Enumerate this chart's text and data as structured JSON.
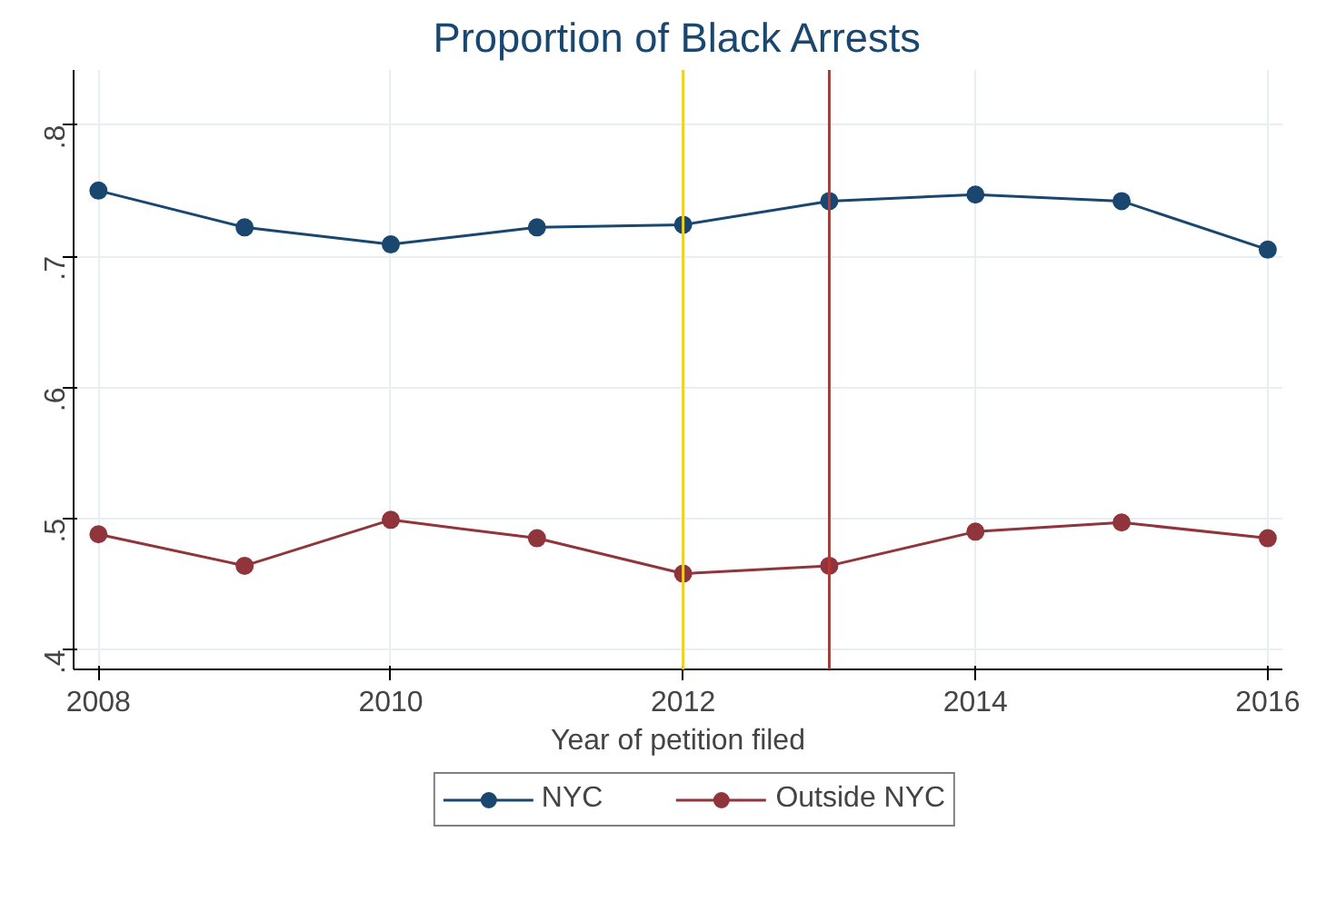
{
  "chart_data": {
    "type": "line",
    "title": "Proportion of Black Arrests",
    "xlabel": "Year of petition filed",
    "x": [
      2008,
      2009,
      2010,
      2011,
      2012,
      2013,
      2014,
      2015,
      2016
    ],
    "series": [
      {
        "name": "NYC",
        "color": "#1a476f",
        "values": [
          0.75,
          0.722,
          0.709,
          0.722,
          0.724,
          0.742,
          0.747,
          0.742,
          0.705
        ]
      },
      {
        "name": "Outside NYC",
        "color": "#90353b",
        "values": [
          0.488,
          0.464,
          0.499,
          0.485,
          0.458,
          0.464,
          0.49,
          0.497,
          0.485
        ]
      }
    ],
    "xlim": [
      2007.83,
      2016.1
    ],
    "ylim": [
      0.385,
      0.842
    ],
    "xticks": [
      2008,
      2010,
      2012,
      2014,
      2016
    ],
    "yticks": [
      {
        "value": 0.4,
        "label": ".4"
      },
      {
        "value": 0.5,
        "label": ".5"
      },
      {
        "value": 0.6,
        "label": ".6"
      },
      {
        "value": 0.7,
        "label": ".7"
      },
      {
        "value": 0.8,
        "label": ".8"
      }
    ],
    "ref_lines": [
      {
        "axis": "x",
        "value": 2012,
        "color": "#f0d020"
      },
      {
        "axis": "x",
        "value": 2013,
        "color": "#c8302a"
      }
    ],
    "grid": true,
    "legend": "bottom",
    "marker": "circle",
    "line_style": "solid"
  }
}
